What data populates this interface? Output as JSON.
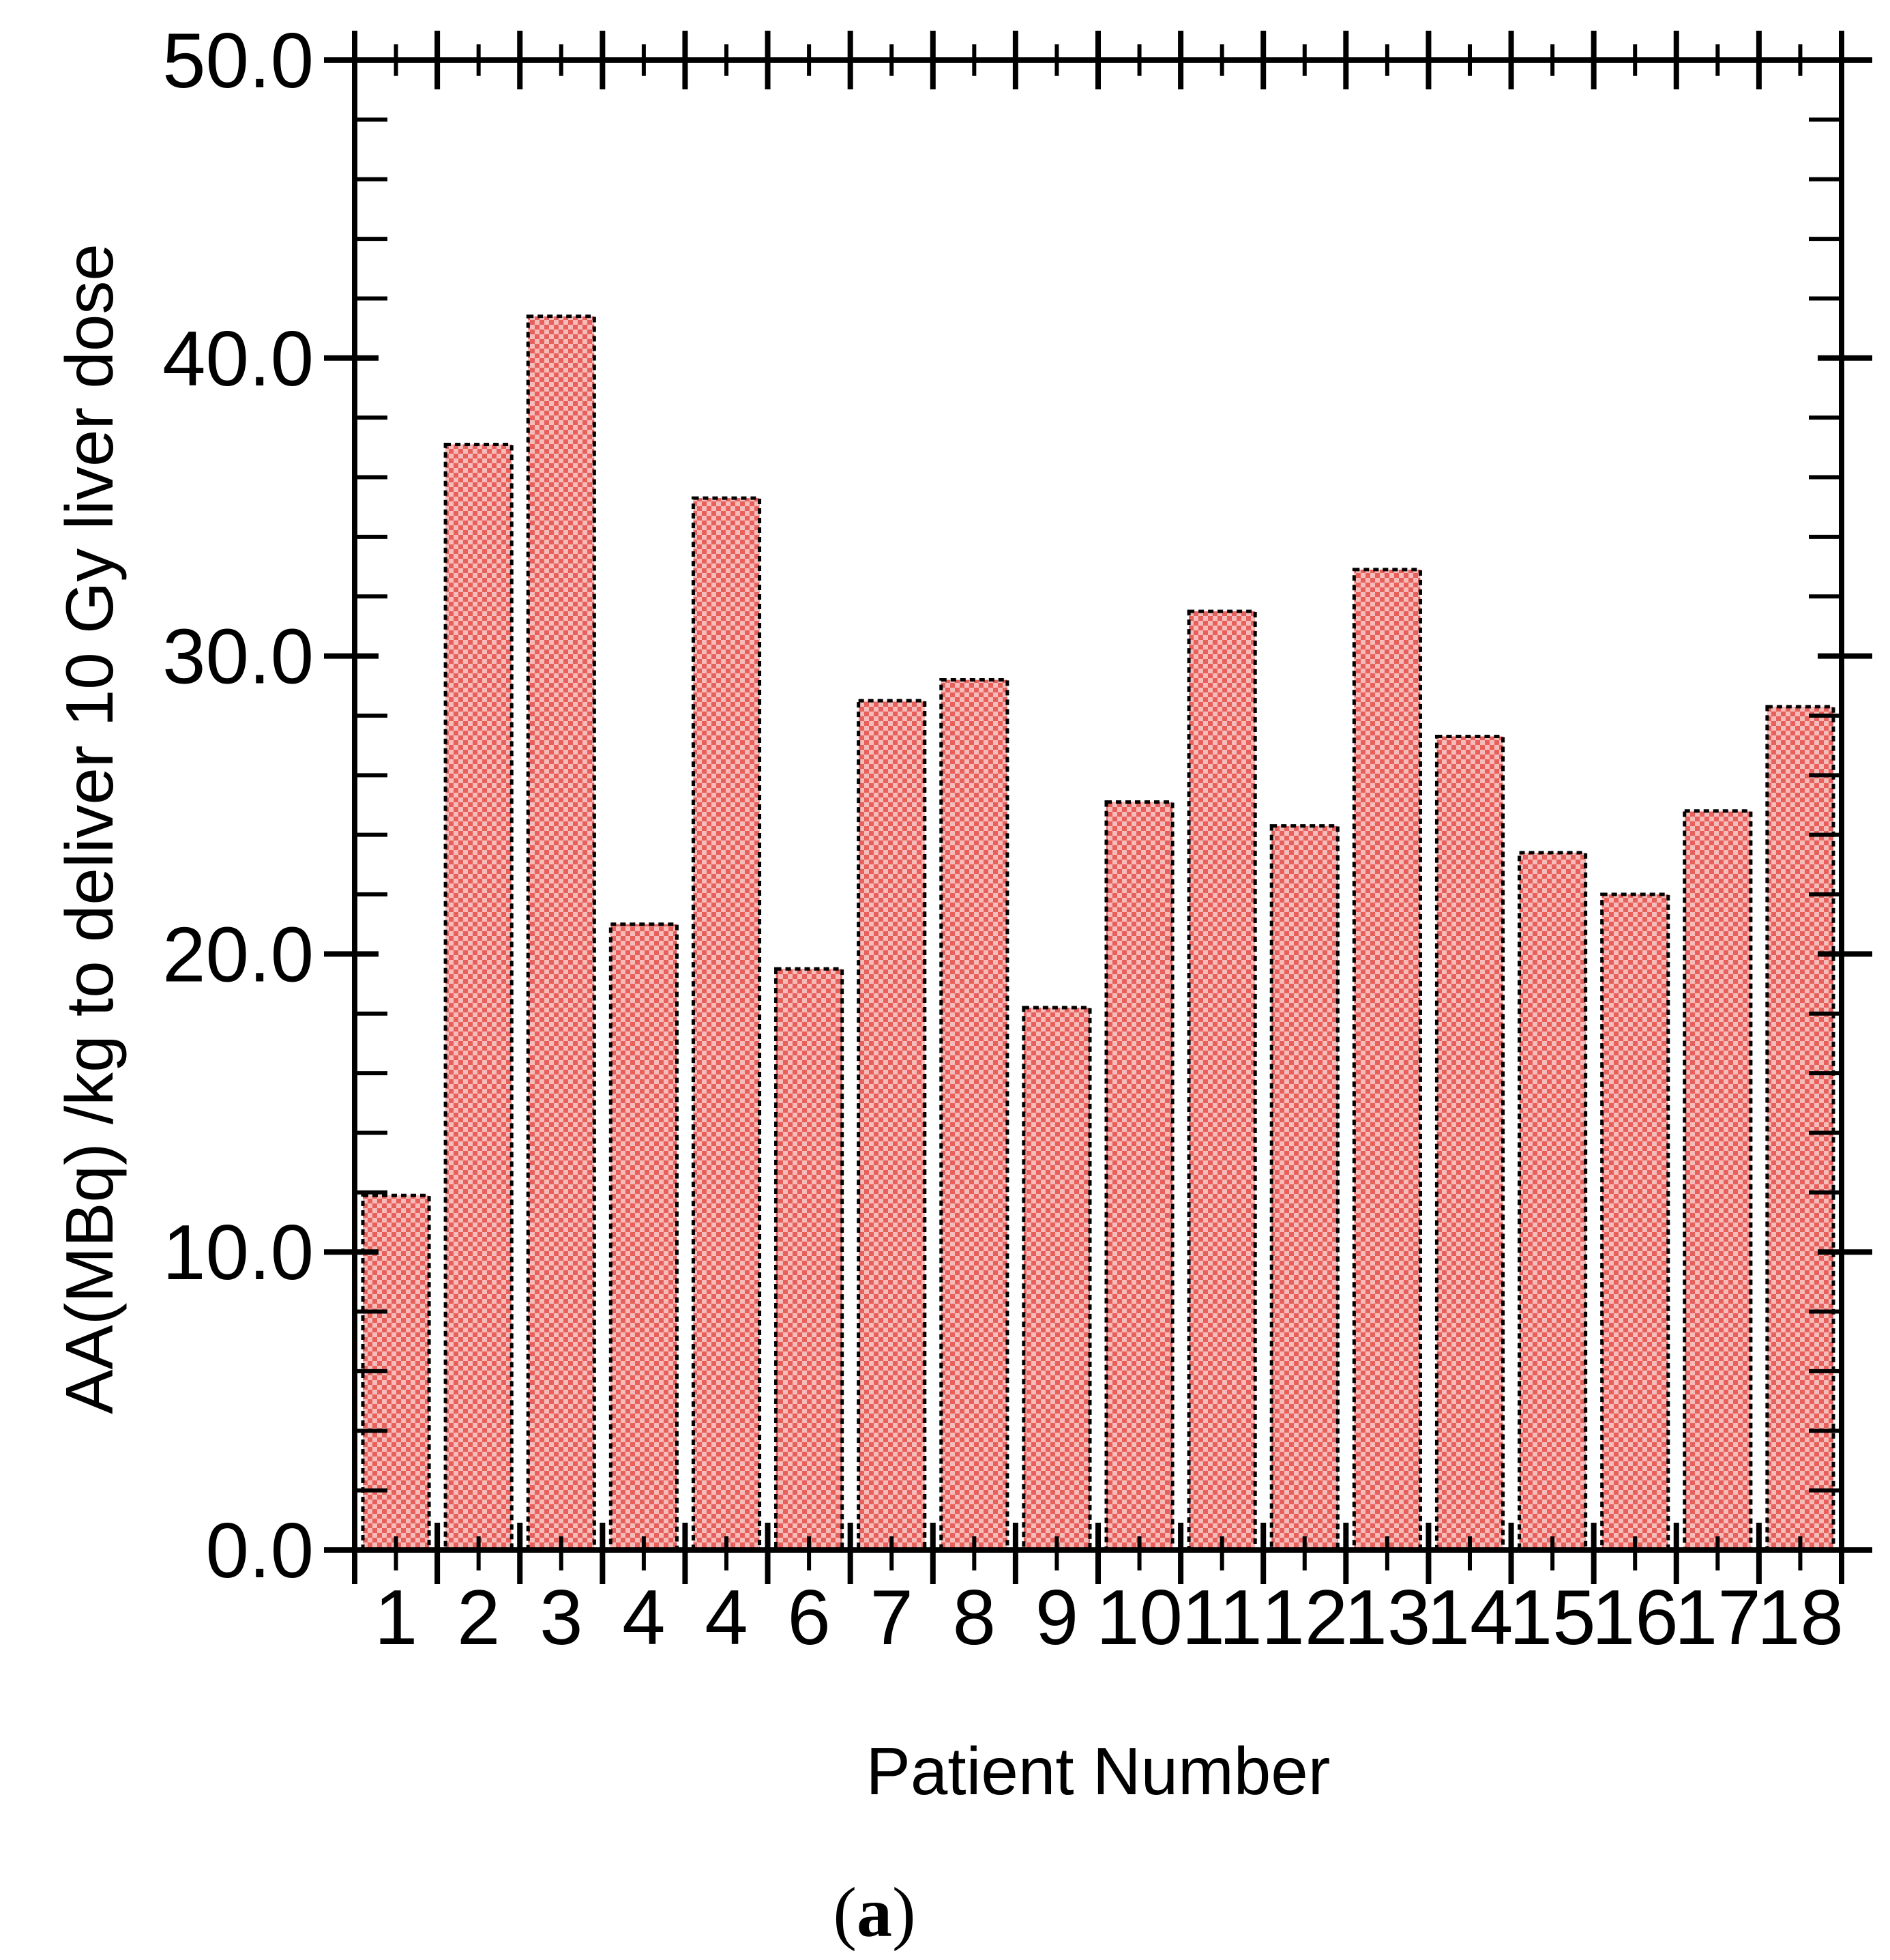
{
  "figure": {
    "caption": "(a)",
    "caption_parts": [
      "(",
      "a",
      ")"
    ]
  },
  "chart_data": {
    "type": "bar",
    "title": "",
    "xlabel": "Patient Number",
    "ylabel": "AA(MBq) /kg to deliver 10 Gy liver dose",
    "categories": [
      "1",
      "2",
      "3",
      "4",
      "4",
      "6",
      "7",
      "8",
      "9",
      "10",
      "11",
      "12",
      "13",
      "14",
      "15",
      "16",
      "17",
      "18"
    ],
    "values": [
      11.9,
      37.1,
      41.4,
      21.0,
      35.3,
      19.5,
      28.5,
      29.2,
      18.2,
      25.1,
      31.5,
      24.3,
      32.9,
      27.3,
      23.4,
      22.0,
      24.8,
      28.3
    ],
    "ylim": [
      0,
      50
    ],
    "ymajor_step": 10,
    "yminor_step": 2,
    "ytick_labels": [
      "0.0",
      "10.0",
      "20.0",
      "30.0",
      "40.0",
      "50.0"
    ],
    "grid": false,
    "legend_position": "none",
    "bar_color_dark": "#e7605c",
    "bar_color_light": "#f6bcb9",
    "bar_border_color": "#000000",
    "axis_color": "#000000",
    "text_color": "#000000"
  }
}
